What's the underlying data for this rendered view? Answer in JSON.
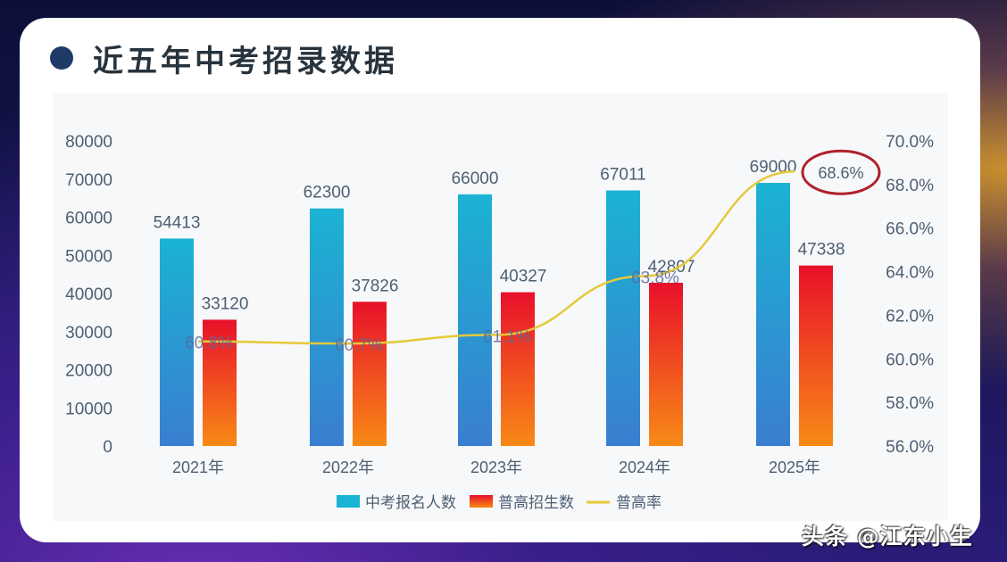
{
  "header": {
    "title": "近五年中考招录数据"
  },
  "watermark": "头条 @江东小生",
  "colors": {
    "registrants_top": "#1bb3d3",
    "registrants_bottom": "#3a7ed0",
    "admissions_top": "#e8102a",
    "admissions_bottom": "#f88a16",
    "rate_line": "#e5c93a",
    "highlight_circle": "#b0202a",
    "axis_text": "#4d5f72",
    "title_dot": "#1e3a66"
  },
  "chart_data": {
    "type": "bar",
    "title": "近五年中考招录数据",
    "categories": [
      "2021年",
      "2022年",
      "2023年",
      "2024年",
      "2025年"
    ],
    "series": [
      {
        "name": "中考报名人数",
        "type": "bar",
        "axis": "left",
        "values": [
          54413,
          62300,
          66000,
          67011,
          69000
        ]
      },
      {
        "name": "普高招生数",
        "type": "bar",
        "axis": "left",
        "values": [
          33120,
          37826,
          40327,
          42807,
          47338
        ]
      },
      {
        "name": "普高率",
        "type": "line",
        "axis": "right",
        "values": [
          60.8,
          60.7,
          61.1,
          63.8,
          68.6
        ],
        "labels": [
          "60.8%",
          "60.7%",
          "61.1%",
          "63.8%",
          "68.6%"
        ]
      }
    ],
    "left_axis": {
      "ticks": [
        "0",
        "10000",
        "20000",
        "30000",
        "40000",
        "50000",
        "60000",
        "70000",
        "80000"
      ],
      "ylim": [
        0,
        80000
      ]
    },
    "right_axis": {
      "ticks": [
        "56.0%",
        "58.0%",
        "60.0%",
        "62.0%",
        "64.0%",
        "66.0%",
        "68.0%",
        "70.0%"
      ],
      "ylim": [
        56,
        70
      ]
    },
    "legend": {
      "position": "bottom",
      "entries": [
        "中考报名人数",
        "普高招生数",
        "普高率"
      ]
    },
    "annotations": [
      {
        "text": "68.6%",
        "type": "circle-highlight",
        "category": "2025年"
      }
    ],
    "grid": false
  }
}
